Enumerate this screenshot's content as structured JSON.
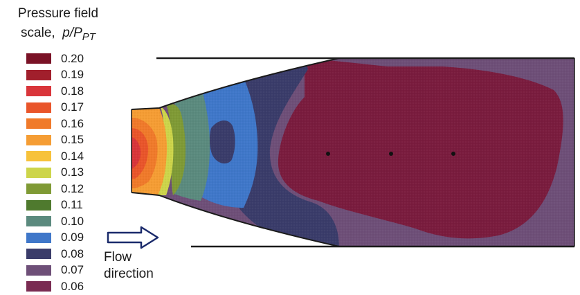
{
  "title": {
    "line1": "Pressure field",
    "line2_prefix": "scale,",
    "symbol": "p/P",
    "subscript": "PT"
  },
  "legend": [
    {
      "label": "0.20",
      "color": "#7a1226"
    },
    {
      "label": "0.19",
      "color": "#a11f2c"
    },
    {
      "label": "0.18",
      "color": "#d9353a"
    },
    {
      "label": "0.17",
      "color": "#e9552a"
    },
    {
      "label": "0.16",
      "color": "#f07a2a"
    },
    {
      "label": "0.15",
      "color": "#f59d34"
    },
    {
      "label": "0.14",
      "color": "#f7c23a"
    },
    {
      "label": "0.13",
      "color": "#cdd54a"
    },
    {
      "label": "0.12",
      "color": "#7f9a35"
    },
    {
      "label": "0.11",
      "color": "#4f7a2e"
    },
    {
      "label": "0.10",
      "color": "#5b8a7e"
    },
    {
      "label": "0.09",
      "color": "#3f77c9"
    },
    {
      "label": "0.08",
      "color": "#3a3c6a"
    },
    {
      "label": "0.07",
      "color": "#6e4f78"
    },
    {
      "label": "0.06",
      "color": "#7a2b52"
    }
  ],
  "flow": {
    "line1": "Flow",
    "line2": "direction"
  }
}
